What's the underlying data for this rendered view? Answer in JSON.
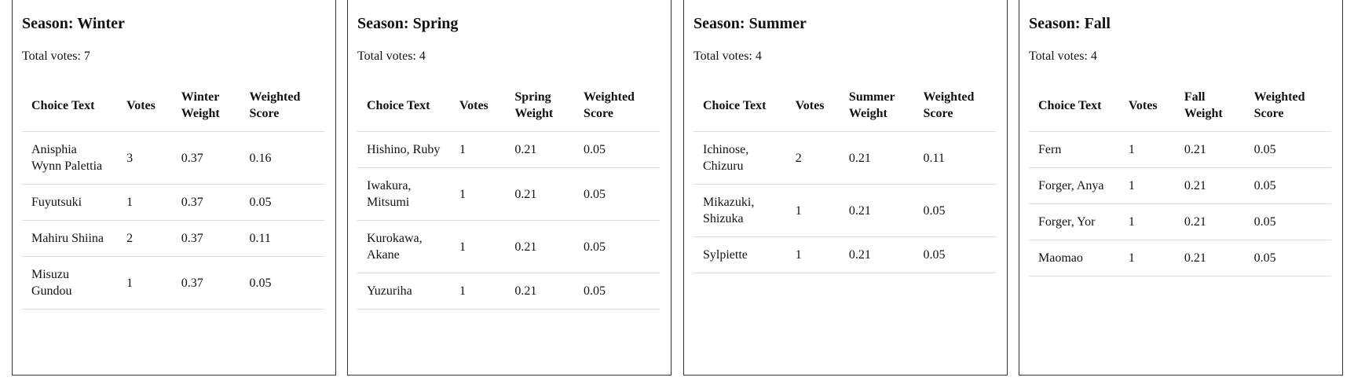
{
  "panels": [
    {
      "title": "Season: Winter",
      "total": "Total votes: 7",
      "headers": [
        "Choice Text",
        "Votes",
        "Winter Weight",
        "Weighted Score"
      ],
      "rows": [
        [
          "Anisphia Wynn Palettia",
          "3",
          "0.37",
          "0.16"
        ],
        [
          "Fuyutsuki",
          "1",
          "0.37",
          "0.05"
        ],
        [
          "Mahiru Shiina",
          "2",
          "0.37",
          "0.11"
        ],
        [
          "Misuzu Gundou",
          "1",
          "0.37",
          "0.05"
        ]
      ]
    },
    {
      "title": "Season: Spring",
      "total": "Total votes: 4",
      "headers": [
        "Choice Text",
        "Votes",
        "Spring Weight",
        "Weighted Score"
      ],
      "rows": [
        [
          "Hishino, Ruby",
          "1",
          "0.21",
          "0.05"
        ],
        [
          "Iwakura, Mitsumi",
          "1",
          "0.21",
          "0.05"
        ],
        [
          "Kurokawa, Akane",
          "1",
          "0.21",
          "0.05"
        ],
        [
          "Yuzuriha",
          "1",
          "0.21",
          "0.05"
        ]
      ]
    },
    {
      "title": "Season: Summer",
      "total": "Total votes: 4",
      "headers": [
        "Choice Text",
        "Votes",
        "Summer Weight",
        "Weighted Score"
      ],
      "rows": [
        [
          "Ichinose, Chizuru",
          "2",
          "0.21",
          "0.11"
        ],
        [
          "Mikazuki, Shizuka",
          "1",
          "0.21",
          "0.05"
        ],
        [
          "Sylpiette",
          "1",
          "0.21",
          "0.05"
        ]
      ]
    },
    {
      "title": "Season: Fall",
      "total": "Total votes: 4",
      "headers": [
        "Choice Text",
        "Votes",
        "Fall Weight",
        "Weighted Score"
      ],
      "rows": [
        [
          "Fern",
          "1",
          "0.21",
          "0.05"
        ],
        [
          "Forger, Anya",
          "1",
          "0.21",
          "0.05"
        ],
        [
          "Forger, Yor",
          "1",
          "0.21",
          "0.05"
        ],
        [
          "Maomao",
          "1",
          "0.21",
          "0.05"
        ]
      ]
    }
  ]
}
